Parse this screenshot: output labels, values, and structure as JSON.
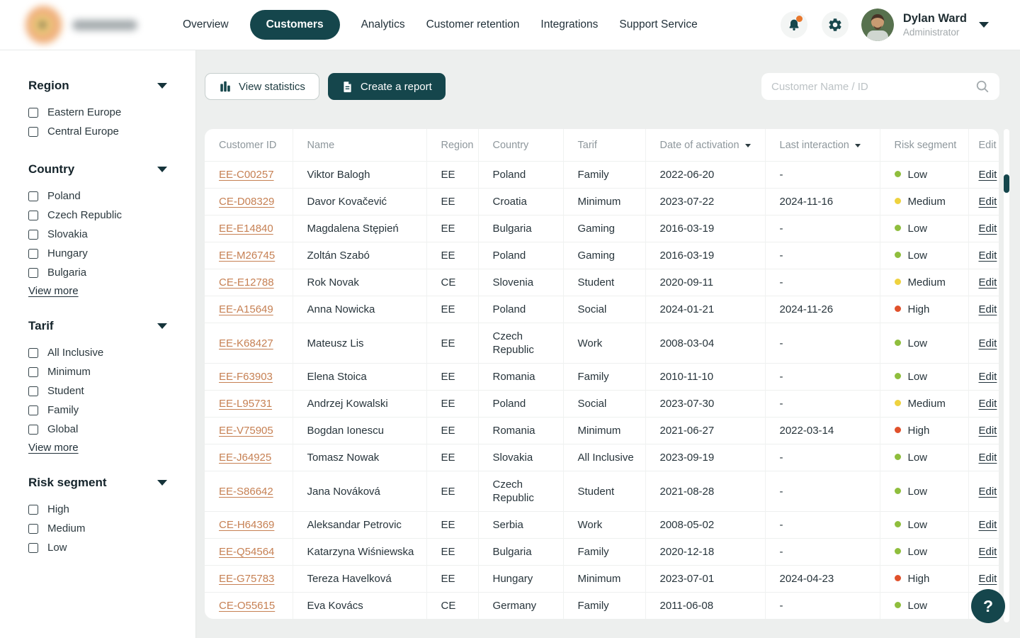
{
  "header": {
    "logo": {
      "appearance": "blurred-orange-emblem-with-blurred-wordmark"
    },
    "nav": [
      {
        "label": "Overview",
        "active": false
      },
      {
        "label": "Customers",
        "active": true
      },
      {
        "label": "Analytics",
        "active": false
      },
      {
        "label": "Customer retention",
        "active": false
      },
      {
        "label": "Integrations",
        "active": false
      },
      {
        "label": "Support Service",
        "active": false
      }
    ],
    "user": {
      "name": "Dylan Ward",
      "role": "Administrator"
    },
    "icons": [
      "bell-icon",
      "gear-icon",
      "chevron-down-icon"
    ]
  },
  "sidebar": {
    "view_more_label": "View more",
    "groups": [
      {
        "title": "Region",
        "items": [
          "Eastern Europe",
          "Central Europe"
        ],
        "view_more": false
      },
      {
        "title": "Country",
        "items": [
          "Poland",
          "Czech Republic",
          "Slovakia",
          "Hungary",
          "Bulgaria"
        ],
        "view_more": true
      },
      {
        "title": "Tarif",
        "items": [
          "All Inclusive",
          "Minimum",
          "Student",
          "Family",
          "Global"
        ],
        "view_more": true
      },
      {
        "title": "Risk segment",
        "items": [
          "High",
          "Medium",
          "Low"
        ],
        "view_more": false
      }
    ]
  },
  "toolbar": {
    "view_statistics_label": "View statistics",
    "create_report_label": "Create a report",
    "search_placeholder": "Customer Name / ID",
    "icons": [
      "bar-chart-icon",
      "report-document-icon",
      "search-icon"
    ]
  },
  "table": {
    "columns": [
      {
        "label": "Customer ID",
        "sortable": false
      },
      {
        "label": "Name",
        "sortable": false
      },
      {
        "label": "Region",
        "sortable": false
      },
      {
        "label": "Country",
        "sortable": false
      },
      {
        "label": "Tarif",
        "sortable": false
      },
      {
        "label": "Date of activation",
        "sortable": true
      },
      {
        "label": "Last interaction",
        "sortable": true
      },
      {
        "label": "Risk segment",
        "sortable": false
      },
      {
        "label": "Edit",
        "sortable": false
      }
    ],
    "edit_label": "Edit",
    "rows": [
      {
        "id": "EE-C00257",
        "name": "Viktor Balogh",
        "region": "EE",
        "country": "Poland",
        "tarif": "Family",
        "activation": "2022-06-20",
        "last_interaction": "-",
        "risk": "Low"
      },
      {
        "id": "CE-D08329",
        "name": "Davor Kovačević",
        "region": "EE",
        "country": "Croatia",
        "tarif": "Minimum",
        "activation": "2023-07-22",
        "last_interaction": "2024-11-16",
        "risk": "Medium"
      },
      {
        "id": "EE-E14840",
        "name": "Magdalena Stępień",
        "region": "EE",
        "country": "Bulgaria",
        "tarif": "Gaming",
        "activation": "2016-03-19",
        "last_interaction": "-",
        "risk": "Low"
      },
      {
        "id": "EE-M26745",
        "name": "Zoltán Szabó",
        "region": "EE",
        "country": "Poland",
        "tarif": "Gaming",
        "activation": "2016-03-19",
        "last_interaction": "-",
        "risk": "Low"
      },
      {
        "id": "CE-E12788",
        "name": "Rok Novak",
        "region": "CE",
        "country": "Slovenia",
        "tarif": "Student",
        "activation": "2020-09-11",
        "last_interaction": "-",
        "risk": "Medium"
      },
      {
        "id": "EE-A15649",
        "name": "Anna Nowicka",
        "region": "EE",
        "country": "Poland",
        "tarif": "Social",
        "activation": "2024-01-21",
        "last_interaction": "2024-11-26",
        "risk": "High"
      },
      {
        "id": "EE-K68427",
        "name": "Mateusz Lis",
        "region": "EE",
        "country": "Czech Republic",
        "tarif": "Work",
        "activation": "2008-03-04",
        "last_interaction": "-",
        "risk": "Low"
      },
      {
        "id": "EE-F63903",
        "name": "Elena Stoica",
        "region": "EE",
        "country": "Romania",
        "tarif": "Family",
        "activation": "2010-11-10",
        "last_interaction": "-",
        "risk": "Low"
      },
      {
        "id": "EE-L95731",
        "name": "Andrzej Kowalski",
        "region": "EE",
        "country": "Poland",
        "tarif": "Social",
        "activation": "2023-07-30",
        "last_interaction": "-",
        "risk": "Medium"
      },
      {
        "id": "EE-V75905",
        "name": "Bogdan Ionescu",
        "region": "EE",
        "country": "Romania",
        "tarif": "Minimum",
        "activation": "2021-06-27",
        "last_interaction": "2022-03-14",
        "risk": "High"
      },
      {
        "id": "EE-J64925",
        "name": "Tomasz Nowak",
        "region": "EE",
        "country": "Slovakia",
        "tarif": "All Inclusive",
        "activation": "2023-09-19",
        "last_interaction": "-",
        "risk": "Low"
      },
      {
        "id": "EE-S86642",
        "name": "Jana Nováková",
        "region": "EE",
        "country": "Czech Republic",
        "tarif": "Student",
        "activation": "2021-08-28",
        "last_interaction": "-",
        "risk": "Low"
      },
      {
        "id": "CE-H64369",
        "name": "Aleksandar Petrovic",
        "region": "EE",
        "country": "Serbia",
        "tarif": "Work",
        "activation": "2008-05-02",
        "last_interaction": "-",
        "risk": "Low"
      },
      {
        "id": "EE-Q54564",
        "name": "Katarzyna Wiśniewska",
        "region": "EE",
        "country": "Bulgaria",
        "tarif": "Family",
        "activation": "2020-12-18",
        "last_interaction": "-",
        "risk": "Low"
      },
      {
        "id": "EE-G75783",
        "name": "Tereza Havelková",
        "region": "EE",
        "country": "Hungary",
        "tarif": "Minimum",
        "activation": "2023-07-01",
        "last_interaction": "2024-04-23",
        "risk": "High"
      },
      {
        "id": "CE-O55615",
        "name": "Eva Kovács",
        "region": "CE",
        "country": "Germany",
        "tarif": "Family",
        "activation": "2011-06-08",
        "last_interaction": "-",
        "risk": "Low"
      }
    ]
  },
  "help_button_label": "?",
  "colors": {
    "accent_dark_teal": "#15464c",
    "page_background": "#edefee",
    "id_link_orange": "#c68053",
    "notification_dot": "#e8772c",
    "risk": {
      "Low": "#8fbe3d",
      "Medium": "#eed23f",
      "High": "#e0512b"
    }
  }
}
